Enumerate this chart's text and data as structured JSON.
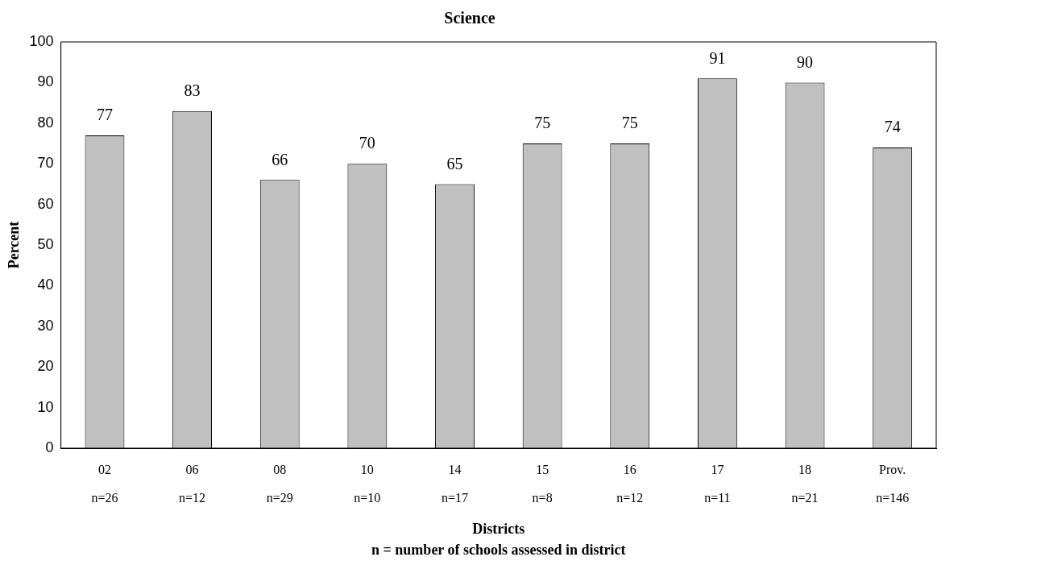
{
  "chart_data": {
    "type": "bar",
    "title": "Science",
    "xlabel": "Districts",
    "ylabel": "Percent",
    "categories": [
      "02\nn=26",
      "06\nn=12",
      "08\nn=29",
      "10\nn=10",
      "14\nn=17",
      "15\nn=8",
      "16\nn=12",
      "17\nn=11",
      "18\nn=21",
      "Prov.\nn=146"
    ],
    "values": [
      77,
      83,
      66,
      70,
      65,
      75,
      75,
      91,
      90,
      74
    ],
    "color": "#c0c0c0",
    "ylim": [
      0,
      100
    ],
    "yticks": [
      0,
      10,
      20,
      30,
      40,
      50,
      60,
      70,
      80,
      90,
      100
    ],
    "grid": false,
    "legend": false,
    "data_labels": true,
    "annotations": [
      "n = number of schools assessed in district"
    ]
  }
}
